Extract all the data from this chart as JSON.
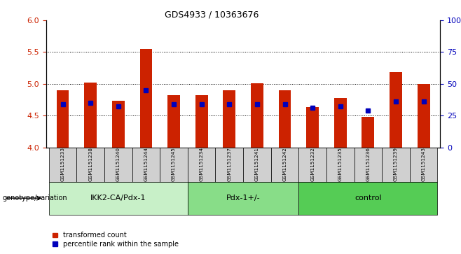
{
  "title": "GDS4933 / 10363676",
  "samples": [
    "GSM1151233",
    "GSM1151238",
    "GSM1151240",
    "GSM1151244",
    "GSM1151245",
    "GSM1151234",
    "GSM1151237",
    "GSM1151241",
    "GSM1151242",
    "GSM1151232",
    "GSM1151235",
    "GSM1151236",
    "GSM1151239",
    "GSM1151243"
  ],
  "red_values": [
    4.9,
    5.02,
    4.73,
    5.55,
    4.82,
    4.82,
    4.9,
    5.01,
    4.9,
    4.63,
    4.78,
    4.48,
    5.18,
    5.0
  ],
  "blue_values": [
    4.68,
    4.7,
    4.65,
    4.9,
    4.68,
    4.68,
    4.68,
    4.68,
    4.68,
    4.62,
    4.65,
    4.58,
    4.72,
    4.72
  ],
  "ylim_left": [
    4.0,
    6.0
  ],
  "ylim_right": [
    0,
    100
  ],
  "yticks_left": [
    4.0,
    4.5,
    5.0,
    5.5,
    6.0
  ],
  "yticks_right": [
    0,
    25,
    50,
    75,
    100
  ],
  "groups": [
    {
      "label": "IKK2-CA/Pdx-1",
      "start": 0,
      "end": 5,
      "color": "#c8f0c8"
    },
    {
      "label": "Pdx-1+/-",
      "start": 5,
      "end": 9,
      "color": "#88dd88"
    },
    {
      "label": "control",
      "start": 9,
      "end": 14,
      "color": "#55cc55"
    }
  ],
  "bar_color": "#cc2200",
  "dot_color": "#0000bb",
  "bar_width": 0.45,
  "tick_color_left": "#cc2200",
  "tick_color_right": "#0000bb",
  "sample_bg_color": "#d0d0d0",
  "legend_red_label": "transformed count",
  "legend_blue_label": "percentile rank within the sample",
  "genotype_label": "genotype/variation"
}
